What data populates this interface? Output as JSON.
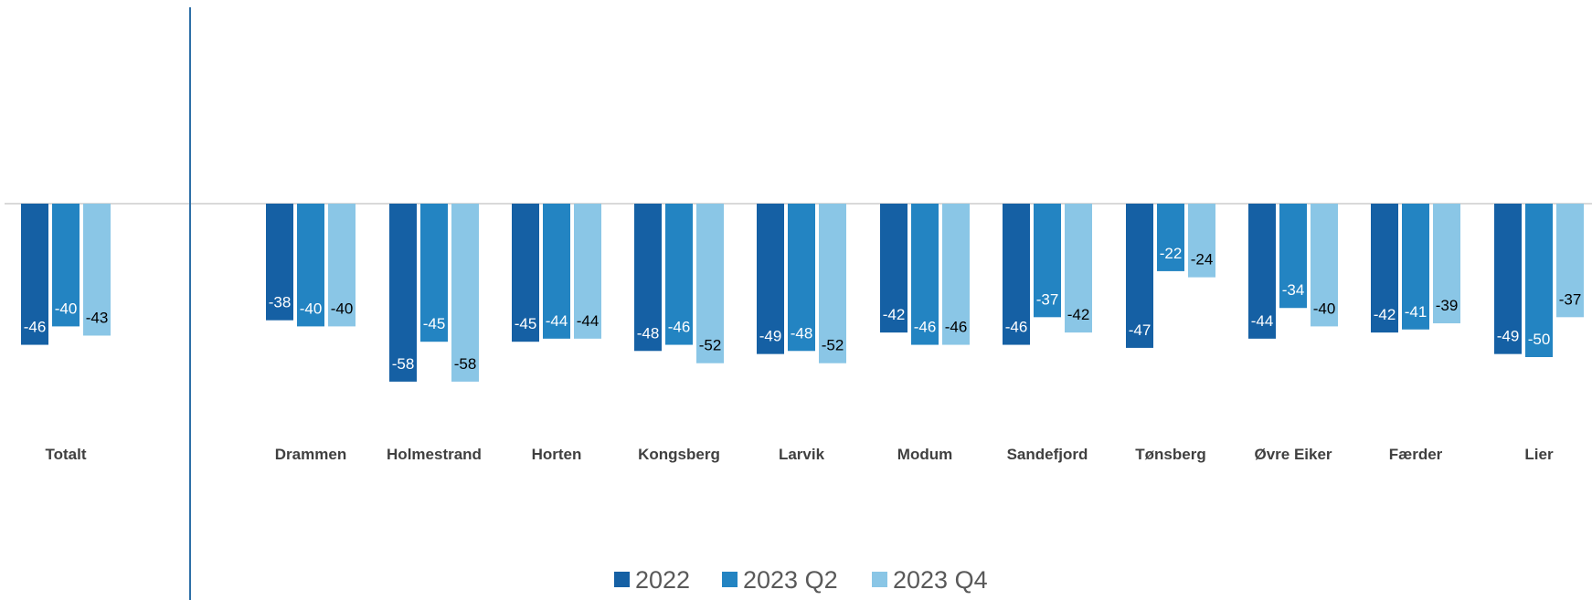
{
  "chart_data": {
    "type": "bar",
    "title": "",
    "xlabel": "",
    "ylabel": "",
    "ylim": [
      -70,
      35
    ],
    "grid": false,
    "legend_position": "bottom",
    "categories": [
      "Totalt",
      "Drammen",
      "Holmestrand",
      "Horten",
      "Kongsberg",
      "Larvik",
      "Modum",
      "Sandefjord",
      "Tønsberg",
      "Øvre Eiker",
      "Færder",
      "Lier"
    ],
    "series": [
      {
        "name": "2022",
        "color": "#1560A4",
        "label_color": "#ffffff",
        "values": [
          -46,
          -38,
          -58,
          -45,
          -48,
          -49,
          -42,
          -46,
          -47,
          -44,
          -42,
          -49
        ]
      },
      {
        "name": "2023 Q2",
        "color": "#2384C2",
        "label_color": "#ffffff",
        "values": [
          -40,
          -40,
          -45,
          -44,
          -46,
          -48,
          -46,
          -37,
          -22,
          -34,
          -41,
          -50
        ]
      },
      {
        "name": "2023 Q4",
        "color": "#8AC6E6",
        "label_color": "#000000",
        "values": [
          -43,
          -40,
          -58,
          -44,
          -52,
          -52,
          -46,
          -42,
          -24,
          -40,
          -39,
          -37
        ]
      }
    ]
  }
}
